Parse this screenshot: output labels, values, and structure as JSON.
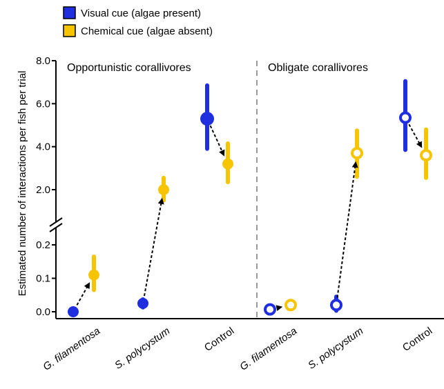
{
  "chart_data": {
    "type": "scatter",
    "ylabel": "Estimated number of interactions per fish per trial",
    "legend": {
      "placement": "top-left",
      "items": [
        {
          "label": "Visual cue (algae present)",
          "color": "#1f2fe0"
        },
        {
          "label": "Chemical cue (algae absent)",
          "color": "#f7c400"
        }
      ]
    },
    "y_axis": {
      "broken": true,
      "lower_range": [
        0,
        0.2
      ],
      "lower_ticks": [
        {
          "value": 0.0,
          "label": "0.0"
        },
        {
          "value": 0.1,
          "label": "0.1"
        },
        {
          "value": 0.2,
          "label": "0.2"
        }
      ],
      "upper_range": [
        2.0,
        8.0
      ],
      "upper_ticks": [
        {
          "value": 2.0,
          "label": "2.0"
        },
        {
          "value": 4.0,
          "label": "4.0"
        },
        {
          "value": 6.0,
          "label": "6.0"
        },
        {
          "value": 8.0,
          "label": "8.0"
        }
      ]
    },
    "panels": [
      {
        "title": "Opportunistic corallivores",
        "marker": "filled",
        "categories": [
          {
            "label": "G. filamentosa",
            "italic": true,
            "visual": {
              "value": 0.0,
              "low": 0.0,
              "high": 0.0
            },
            "chemical": {
              "value": 0.11,
              "low": 0.065,
              "high": 0.165
            }
          },
          {
            "label": "S. polycystum",
            "italic": true,
            "visual": {
              "value": 0.025,
              "low": 0.013,
              "high": 0.037
            },
            "chemical": {
              "value": 2.0,
              "low": 1.5,
              "high": 2.55
            }
          },
          {
            "label": "Control",
            "italic": false,
            "visual": {
              "value": 5.3,
              "low": 3.9,
              "high": 6.85
            },
            "chemical": {
              "value": 3.2,
              "low": 2.35,
              "high": 4.15
            }
          }
        ]
      },
      {
        "title": "Obligate corallivores",
        "marker": "open",
        "categories": [
          {
            "label": "G. filamentosa",
            "italic": true,
            "visual": {
              "value": 0.007,
              "low": 0.0,
              "high": 0.014
            },
            "chemical": {
              "value": 0.02,
              "low": 0.008,
              "high": 0.032
            }
          },
          {
            "label": "S. polycystum",
            "italic": true,
            "visual": {
              "value": 0.02,
              "low": 0.003,
              "high": 0.045
            },
            "chemical": {
              "value": 3.7,
              "low": 2.6,
              "high": 4.75
            }
          },
          {
            "label": "Control",
            "italic": false,
            "visual": {
              "value": 5.35,
              "low": 3.85,
              "high": 7.05
            },
            "chemical": {
              "value": 3.6,
              "low": 2.55,
              "high": 4.8
            }
          }
        ]
      }
    ]
  }
}
